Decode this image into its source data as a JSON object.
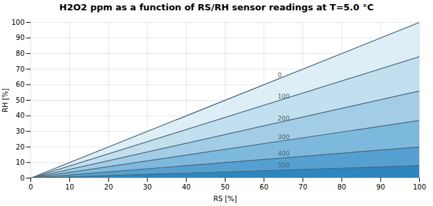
{
  "chart_data": {
    "type": "area",
    "title": "H2O2 ppm as a function of RS/RH sensor readings at T=5.0 °C",
    "xlabel": "RS [%]",
    "ylabel": "RH [%]",
    "x": [
      0,
      100
    ],
    "series": [
      {
        "name": "0",
        "color": "#ddeef7",
        "values": [
          0,
          100
        ]
      },
      {
        "name": "100",
        "color": "#c2dfef",
        "values": [
          0,
          78
        ]
      },
      {
        "name": "200",
        "color": "#a3cce6",
        "values": [
          0,
          56
        ]
      },
      {
        "name": "300",
        "color": "#7db8dd",
        "values": [
          0,
          37
        ]
      },
      {
        "name": "400",
        "color": "#55a0d0",
        "values": [
          0,
          20
        ]
      },
      {
        "name": "500",
        "color": "#2d86c0",
        "values": [
          0,
          8
        ]
      }
    ],
    "color": "#4a6575",
    "xlim": [
      0,
      100
    ],
    "ylim": [
      0,
      100
    ],
    "xticks": [
      0,
      10,
      20,
      30,
      40,
      50,
      60,
      70,
      80,
      90,
      100
    ],
    "yticks": [
      0,
      10,
      20,
      30,
      40,
      50,
      60,
      70,
      80,
      90,
      100
    ],
    "grid": true
  }
}
